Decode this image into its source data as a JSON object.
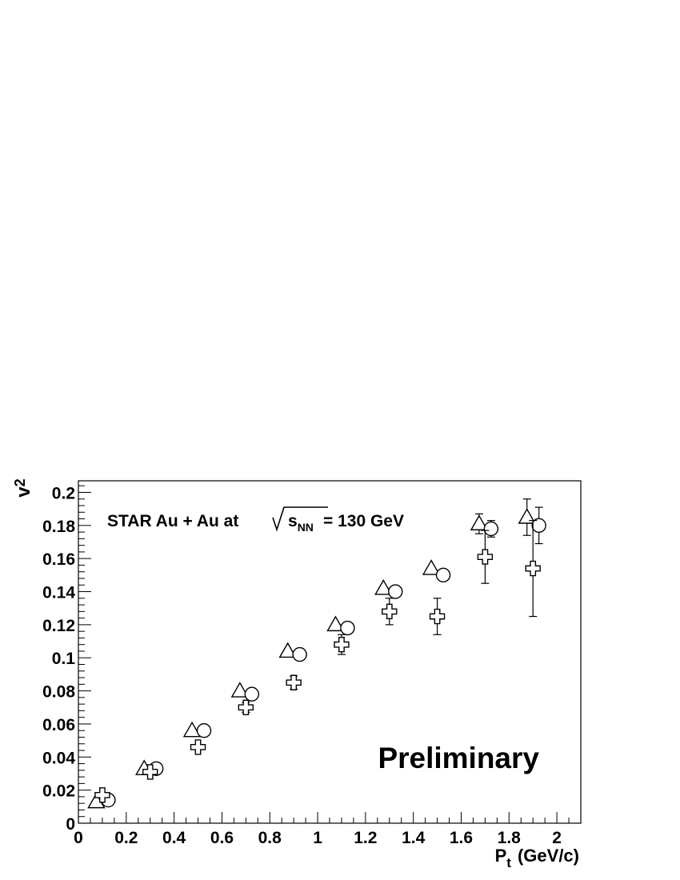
{
  "chart_data": {
    "type": "scatter",
    "x_axis": {
      "label_main": "P",
      "label_sub": "t",
      "label_unit": "(GeV/c)",
      "range": [
        0,
        2.1
      ],
      "tick_labels": [
        "0",
        "0.2",
        "0.4",
        "0.6",
        "0.8",
        "1",
        "1.2",
        "1.4",
        "1.6",
        "1.8",
        "2"
      ]
    },
    "y_axis": {
      "label_main": "v",
      "label_sub": "2",
      "range": [
        0,
        0.207
      ],
      "tick_labels": [
        "0",
        "0.02",
        "0.04",
        "0.06",
        "0.08",
        "0.1",
        "0.12",
        "0.14",
        "0.16",
        "0.18",
        "0.2"
      ]
    },
    "annotation": {
      "prefix": "STAR Au + Au at ",
      "sqrt_var": "s",
      "sqrt_sub": "NN",
      "suffix": " = 130 GeV"
    },
    "watermark": "Preliminary",
    "grid": false,
    "series": [
      {
        "marker": "triangle",
        "x": [
          0.075,
          0.275,
          0.475,
          0.675,
          0.875,
          1.075,
          1.275,
          1.475,
          1.675,
          1.875
        ],
        "y": [
          0.013,
          0.033,
          0.056,
          0.08,
          0.104,
          0.12,
          0.142,
          0.154,
          0.181,
          0.185
        ],
        "err": [
          0,
          0,
          0,
          0,
          0,
          0,
          0,
          0,
          0.006,
          0.011
        ]
      },
      {
        "marker": "circle",
        "x": [
          0.125,
          0.325,
          0.525,
          0.725,
          0.925,
          1.125,
          1.325,
          1.525,
          1.725,
          1.925
        ],
        "y": [
          0.014,
          0.033,
          0.056,
          0.078,
          0.102,
          0.118,
          0.14,
          0.15,
          0.178,
          0.18
        ],
        "err": [
          0,
          0,
          0,
          0,
          0,
          0,
          0,
          0,
          0.005,
          0.011
        ]
      },
      {
        "marker": "cross",
        "x": [
          0.1,
          0.3,
          0.5,
          0.7,
          0.9,
          1.1,
          1.3,
          1.5,
          1.7,
          1.9
        ],
        "y": [
          0.017,
          0.031,
          0.046,
          0.07,
          0.085,
          0.108,
          0.128,
          0.125,
          0.161,
          0.154
        ],
        "err": [
          0,
          0,
          0,
          0.003,
          0.004,
          0.006,
          0.008,
          0.011,
          0.016,
          0.029
        ]
      }
    ]
  }
}
